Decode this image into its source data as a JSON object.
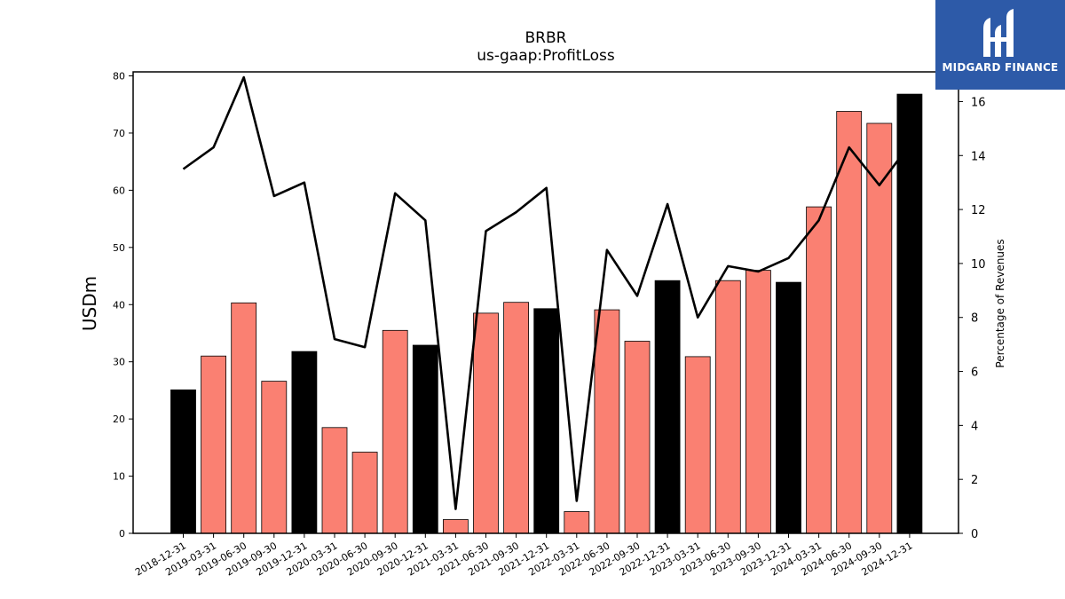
{
  "chart_data": {
    "type": "bar",
    "title": "BRBR",
    "subtitle": "us-gaap:ProfitLoss",
    "ylabel": "USDm",
    "y2label": "Percentage of Revenues",
    "ylim": [
      0,
      80.7
    ],
    "y2lim": [
      0,
      17.1
    ],
    "yticks": [
      0,
      10,
      20,
      30,
      40,
      50,
      60,
      70,
      80
    ],
    "y2ticks": [
      0,
      2,
      4,
      6,
      8,
      10,
      12,
      14,
      16
    ],
    "categories": [
      "2018-12-31",
      "2019-03-31",
      "2019-06-30",
      "2019-09-30",
      "2019-12-31",
      "2020-03-31",
      "2020-06-30",
      "2020-09-30",
      "2020-12-31",
      "2021-03-31",
      "2021-06-30",
      "2021-09-30",
      "2021-12-31",
      "2022-03-31",
      "2022-06-30",
      "2022-09-30",
      "2022-12-31",
      "2023-03-31",
      "2023-06-30",
      "2023-09-30",
      "2023-12-31",
      "2024-03-31",
      "2024-06-30",
      "2024-09-30",
      "2024-12-31"
    ],
    "values": [
      25.1,
      31.0,
      40.3,
      26.6,
      31.8,
      18.5,
      14.2,
      35.5,
      32.9,
      2.4,
      38.5,
      40.4,
      39.3,
      3.8,
      39.1,
      33.6,
      44.2,
      30.9,
      44.2,
      46.0,
      43.9,
      57.1,
      73.8,
      71.7,
      76.8
    ],
    "highlight": [
      true,
      false,
      false,
      false,
      true,
      false,
      false,
      false,
      true,
      false,
      false,
      false,
      true,
      false,
      false,
      false,
      true,
      false,
      false,
      false,
      true,
      false,
      false,
      false,
      true
    ],
    "line_values": [
      13.5,
      14.3,
      16.9,
      12.5,
      13.0,
      7.2,
      6.9,
      12.6,
      11.6,
      0.9,
      11.2,
      11.9,
      12.8,
      1.2,
      10.5,
      8.8,
      12.2,
      8.0,
      9.9,
      9.7,
      10.2,
      11.6,
      14.3,
      12.9,
      14.4
    ],
    "colors": {
      "bar": "#fa8072",
      "highlight_bar": "#000000",
      "line": "#000000"
    },
    "grid": false,
    "legend": "none"
  },
  "logo": {
    "text": "MIDGARD FINANCE"
  }
}
